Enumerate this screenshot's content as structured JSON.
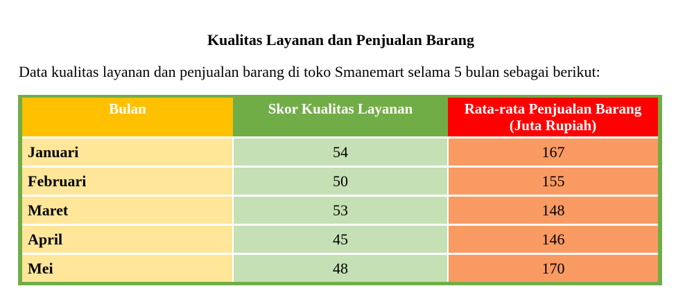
{
  "document": {
    "title": "Kualitas Layanan dan Penjualan Barang",
    "intro": "Data kualitas layanan dan penjualan barang di toko Smanemart selama 5 bulan sebagai berikut:"
  },
  "table": {
    "headers": [
      "Bulan",
      "Skor Kualitas Layanan",
      "Rata-rata Penjualan Barang (Juta Rupiah)"
    ],
    "rows": [
      {
        "bulan": "Januari",
        "skor": "54",
        "penjualan": "167"
      },
      {
        "bulan": "Februari",
        "skor": "50",
        "penjualan": "155"
      },
      {
        "bulan": "Maret",
        "skor": "53",
        "penjualan": "148"
      },
      {
        "bulan": "April",
        "skor": "45",
        "penjualan": "146"
      },
      {
        "bulan": "Mei",
        "skor": "48",
        "penjualan": "170"
      }
    ]
  },
  "colors": {
    "frame": "#70ad47",
    "header_bulan": "#ffc000",
    "header_skor": "#70ad47",
    "header_penjualan": "#ff0000",
    "cell_bulan": "#ffe699",
    "cell_skor": "#c5e0b4",
    "cell_penjualan": "#fa9a63"
  }
}
